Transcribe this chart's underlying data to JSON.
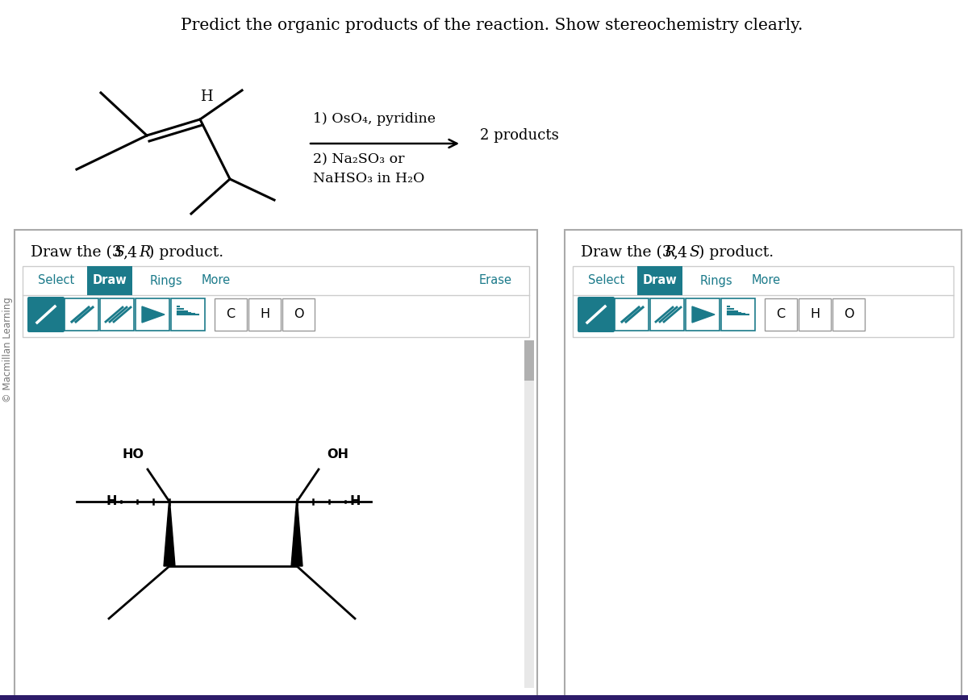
{
  "title": "Predict the organic products of the reaction. Show stereochemistry clearly.",
  "copyright": "© Macmillan Learning",
  "reaction_step1": "1) OsO₄, pyridine",
  "reaction_step2": "2) Na₂SO₃ or",
  "reaction_step3": "NaHSO₃ in H₂O",
  "products_label": "2 products",
  "teal_color": "#1b7a8a",
  "bg_white": "#ffffff",
  "box_border": "#bbbbbb",
  "bottom_bar": "#2d1b69"
}
